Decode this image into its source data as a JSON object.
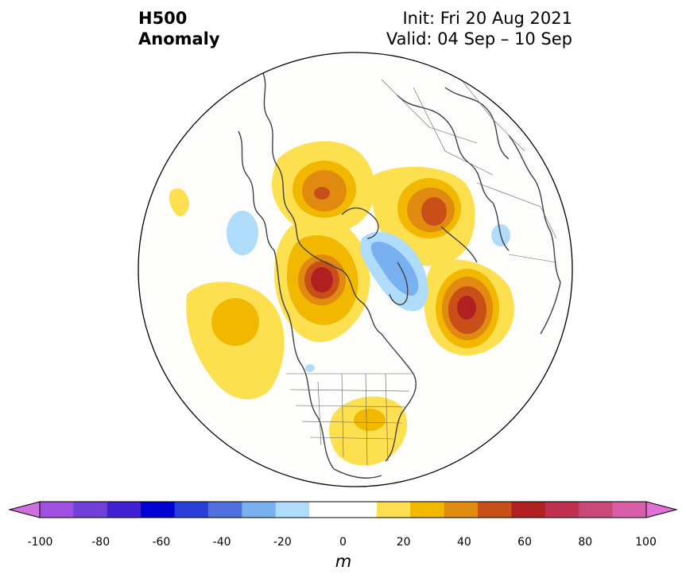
{
  "header": {
    "left_line1": "H500",
    "left_line2": "Anomaly",
    "right_line1": "Init: Fri 20 Aug 2021",
    "right_line2": "Valid: 04 Sep – 10 Sep"
  },
  "colorbar": {
    "ticks": [
      "-100",
      "-80",
      "-60",
      "-40",
      "-20",
      "0",
      "20",
      "40",
      "60",
      "80",
      "100"
    ],
    "unit": "m",
    "colors": [
      "#d070e0",
      "#a050e0",
      "#7040d8",
      "#4020d0",
      "#0000d0",
      "#2840d8",
      "#5070e0",
      "#78b0f0",
      "#b0dcfc",
      "#ffffff",
      "#ffffff",
      "#fde050",
      "#f2b800",
      "#e08a10",
      "#c85018",
      "#b02020",
      "#c03050",
      "#c84878",
      "#d860a8",
      "#e070d8"
    ]
  },
  "map": {
    "projection": "north-polar-stereographic",
    "anomaly_centers": [
      {
        "region": "Alaska",
        "sign": "positive",
        "peak": 60
      },
      {
        "region": "Eastern Siberia",
        "sign": "positive",
        "peak": 40
      },
      {
        "region": "Western Russia",
        "sign": "positive",
        "peak": 40
      },
      {
        "region": "Northern Atlantic",
        "sign": "positive",
        "peak": 60
      },
      {
        "region": "North Pacific",
        "sign": "positive",
        "peak": 30
      },
      {
        "region": "Eastern United States",
        "sign": "positive",
        "peak": 20
      },
      {
        "region": "Arctic Ocean / Greenland",
        "sign": "negative",
        "peak": -30
      }
    ]
  }
}
